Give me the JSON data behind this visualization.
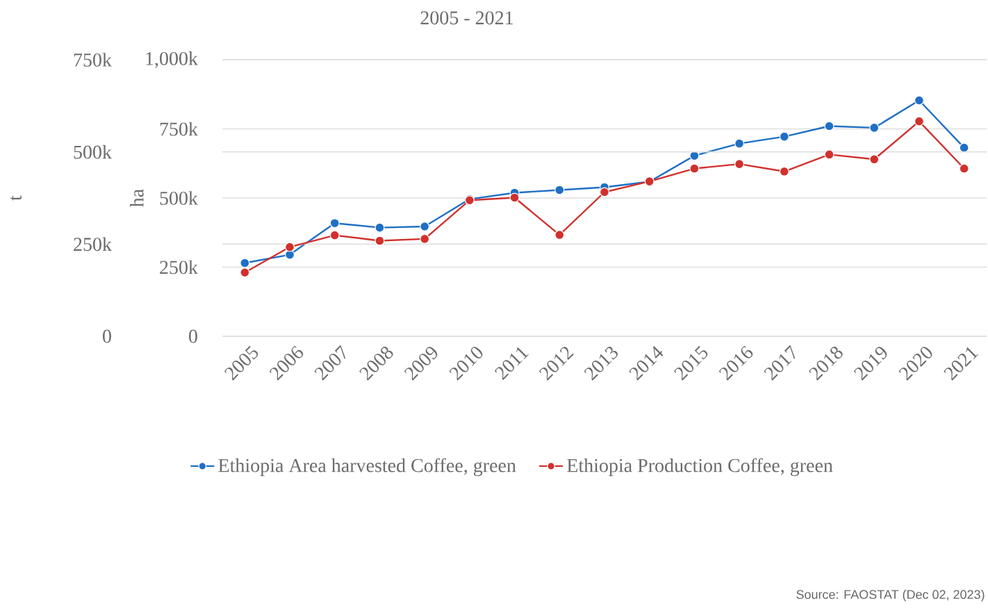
{
  "chart_data": {
    "type": "line",
    "title": "2005 - 2021",
    "ylabel": "ha",
    "y2label": "t",
    "categories": [
      "2005",
      "2006",
      "2007",
      "2008",
      "2009",
      "2010",
      "2011",
      "2012",
      "2013",
      "2014",
      "2015",
      "2016",
      "2017",
      "2018",
      "2019",
      "2020",
      "2021"
    ],
    "series": [
      {
        "name": "Ethiopia Area harvested Coffee, green",
        "color": "#1f6fc5",
        "values": [
          265000,
          295000,
          409000,
          393000,
          397000,
          496000,
          519000,
          529000,
          539000,
          559000,
          653000,
          697000,
          722000,
          760000,
          754000,
          853000,
          682000
        ]
      },
      {
        "name": "Ethiopia Production Coffee, green",
        "color": "#d0312d",
        "axis": "y2",
        "values": [
          173000,
          242000,
          274000,
          259000,
          264000,
          369000,
          376000,
          275000,
          391000,
          420000,
          455000,
          467000,
          447000,
          493000,
          480000,
          583000,
          455000
        ]
      }
    ],
    "ylim": [
      0,
      1000000
    ],
    "yticks": [
      {
        "value": 0,
        "label": "0"
      },
      {
        "value": 250000,
        "label": "250k"
      },
      {
        "value": 500000,
        "label": "500k"
      },
      {
        "value": 750000,
        "label": "750k"
      },
      {
        "value": 1000000,
        "label": "1,000k"
      }
    ],
    "y2lim": [
      0,
      750000
    ],
    "y2ticks": [
      {
        "value": 0,
        "label": "0"
      },
      {
        "value": 250000,
        "label": "250k"
      },
      {
        "value": 500000,
        "label": "500k"
      },
      {
        "value": 750000,
        "label": "750k"
      }
    ],
    "grid": true,
    "legend": "bottom",
    "marker": "circle",
    "line_style": "solid",
    "annotations": [
      "Source: FAOSTAT (Dec 02, 2023)"
    ]
  }
}
